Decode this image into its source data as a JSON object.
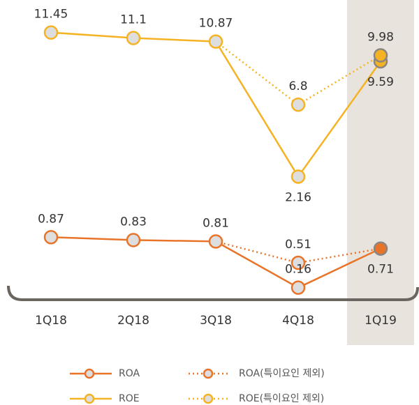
{
  "chart_data": {
    "type": "line",
    "categories": [
      "1Q18",
      "2Q18",
      "3Q18",
      "4Q18",
      "1Q19"
    ],
    "ylim": [
      1.5,
      12.2
    ],
    "y2lim": [
      0,
      1
    ],
    "series": [
      {
        "name": "ROA",
        "color": "#e8742a",
        "style": "solid",
        "axis": "y2",
        "values": [
          0.87,
          0.83,
          0.81,
          0.16,
          0.71
        ]
      },
      {
        "name": "ROE",
        "color": "#f5b324",
        "style": "solid",
        "values": [
          11.45,
          11.1,
          10.87,
          2.16,
          9.59
        ]
      },
      {
        "name": "ROA(특이요인 제외)",
        "color": "#e8742a",
        "style": "dotted",
        "axis": "y2",
        "values": [
          null,
          null,
          0.81,
          0.51,
          0.71
        ]
      },
      {
        "name": "ROE(특이요인 제외)",
        "color": "#f5b324",
        "style": "dotted",
        "values": [
          null,
          null,
          10.87,
          6.8,
          9.98
        ]
      }
    ]
  }
}
